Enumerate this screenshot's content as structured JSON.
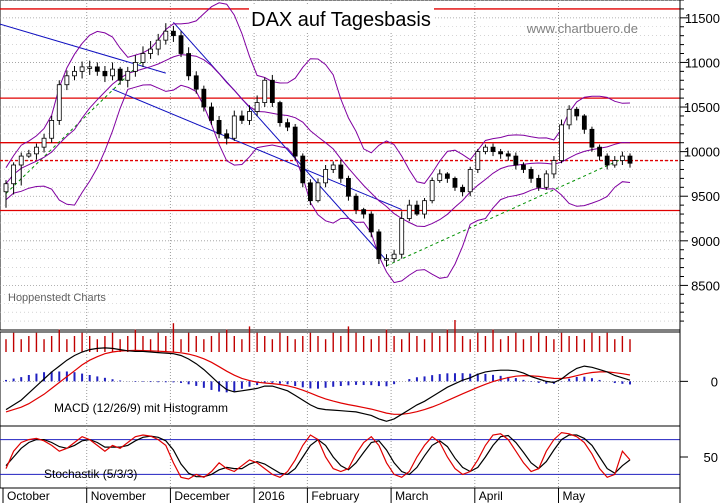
{
  "chart_data": {
    "type": "candlestick",
    "title": "DAX auf Tagesbasis",
    "source": "www.chartbuero.de",
    "credit": "Hoppenstedt Charts",
    "x_labels": [
      "October",
      "November",
      "December",
      "2016",
      "February",
      "March",
      "April",
      "May"
    ],
    "price_axis": {
      "ticks": [
        8500,
        9000,
        9500,
        10000,
        10500,
        11000,
        11500
      ],
      "ylim": [
        8000,
        11700
      ]
    },
    "horizontal_levels": [
      9340,
      9900,
      10100,
      10600,
      11600
    ],
    "price": {
      "open": [
        9550,
        9640,
        9850,
        9950,
        9975,
        10050,
        10150,
        10350,
        10750,
        10850,
        10900,
        10950,
        10950,
        10900,
        10850,
        10925,
        10800,
        10900,
        11000,
        11100,
        11150,
        11250,
        11350,
        11300,
        11100,
        10850,
        10700,
        10500,
        10350,
        10200,
        10150,
        10400,
        10350,
        10450,
        10550,
        10800,
        10550,
        10325,
        10275,
        9950,
        9650,
        9450,
        9650,
        9800,
        9850,
        9700,
        9500,
        9350,
        9300,
        9100,
        8800,
        8800,
        8850,
        9250,
        9400,
        9300,
        9450,
        9675,
        9750,
        9700,
        9600,
        9550,
        9800,
        10000,
        10050,
        10000,
        9975,
        9950,
        9850,
        9800,
        9700,
        9600,
        9750,
        9900,
        10300,
        10475,
        10400,
        10250,
        10050,
        9950,
        9850,
        9900,
        9950
      ],
      "high": [
        9680,
        9880,
        9990,
        10020,
        10090,
        10200,
        10400,
        10800,
        10910,
        10960,
        11010,
        11020,
        11000,
        10960,
        11000,
        10950,
        10950,
        11080,
        11180,
        11240,
        11320,
        11440,
        11410,
        11350,
        11170,
        10900,
        10740,
        10550,
        10400,
        10250,
        10460,
        10460,
        10520,
        10630,
        10830,
        10860,
        10570,
        10370,
        10310,
        9980,
        9690,
        9700,
        9850,
        9890,
        9910,
        9730,
        9530,
        9370,
        9330,
        9130,
        8850,
        8900,
        9330,
        9460,
        9450,
        9480,
        9710,
        9800,
        9770,
        9720,
        9630,
        9830,
        10030,
        10080,
        10090,
        10030,
        10010,
        9990,
        9880,
        9830,
        9740,
        9790,
        9950,
        10360,
        10520,
        10500,
        10420,
        10280,
        10080,
        9980,
        9950,
        10000,
        9980
      ],
      "low": [
        9370,
        9520,
        9620,
        9930,
        9910,
        9990,
        10100,
        10300,
        10690,
        10800,
        10820,
        10860,
        10850,
        10780,
        10800,
        10750,
        10720,
        10840,
        10950,
        11040,
        11080,
        11200,
        11230,
        11060,
        10800,
        10650,
        10450,
        10300,
        10150,
        10080,
        10120,
        10310,
        10300,
        10400,
        10500,
        10500,
        10280,
        10230,
        9900,
        9600,
        9400,
        9430,
        9600,
        9760,
        9650,
        9450,
        9300,
        9250,
        9040,
        8740,
        8710,
        8760,
        8800,
        9220,
        9280,
        9250,
        9420,
        9650,
        9650,
        9560,
        9500,
        9500,
        9760,
        9970,
        9950,
        9920,
        9900,
        9800,
        9760,
        9650,
        9560,
        9570,
        9700,
        9870,
        10250,
        10350,
        10200,
        10000,
        9900,
        9800,
        9820,
        9850,
        9820
      ],
      "close": [
        9640,
        9850,
        9950,
        9975,
        10050,
        10150,
        10350,
        10750,
        10850,
        10900,
        10950,
        10950,
        10900,
        10850,
        10925,
        10800,
        10900,
        11000,
        11100,
        11150,
        11250,
        11350,
        11300,
        11100,
        10850,
        10700,
        10500,
        10350,
        10200,
        10150,
        10400,
        10350,
        10450,
        10550,
        10800,
        10550,
        10325,
        10275,
        9950,
        9650,
        9450,
        9650,
        9800,
        9850,
        9700,
        9500,
        9350,
        9300,
        9100,
        8800,
        8800,
        8850,
        9250,
        9400,
        9300,
        9450,
        9675,
        9750,
        9700,
        9600,
        9550,
        9800,
        10000,
        10050,
        10000,
        9975,
        9950,
        9850,
        9800,
        9700,
        9600,
        9750,
        9900,
        10300,
        10475,
        10400,
        10250,
        10050,
        9950,
        9850,
        9900,
        9950,
        9870
      ]
    },
    "volume": [
      0.4,
      0.6,
      0.4,
      0.5,
      0.6,
      0.4,
      0.5,
      0.7,
      0.4,
      0.5,
      0.6,
      0.5,
      0.4,
      0.5,
      0.6,
      0.4,
      0.5,
      0.7,
      0.5,
      0.4,
      0.6,
      0.5,
      0.9,
      0.4,
      0.6,
      0.5,
      0.4,
      0.5,
      0.6,
      0.7,
      0.5,
      0.4,
      0.8,
      0.6,
      0.5,
      0.4,
      0.6,
      0.5,
      0.4,
      0.5,
      0.6,
      0.5,
      0.4,
      0.6,
      0.5,
      0.8,
      0.6,
      0.5,
      0.4,
      0.5,
      0.7,
      0.5,
      0.4,
      0.6,
      0.5,
      0.4,
      0.6,
      0.5,
      0.7,
      1.0,
      0.5,
      0.4,
      0.6,
      0.5,
      0.7,
      0.4,
      0.5,
      0.6,
      0.4,
      0.5,
      0.6,
      0.5,
      0.4,
      0.6,
      0.5,
      0.5,
      0.4,
      0.6,
      0.5,
      0.6,
      0.4,
      0.5,
      0.4
    ],
    "macd": {
      "label": "MACD (12/26/9) mit Histogramm",
      "ticks": [
        0
      ],
      "ylim": [
        -380,
        420
      ],
      "macd": [
        -240,
        -200,
        -160,
        -100,
        -40,
        20,
        80,
        130,
        180,
        220,
        250,
        270,
        280,
        285,
        280,
        270,
        260,
        255,
        255,
        250,
        245,
        240,
        235,
        220,
        190,
        150,
        100,
        40,
        -20,
        -70,
        -90,
        -80,
        -70,
        -60,
        -40,
        -40,
        -60,
        -80,
        -120,
        -160,
        -200,
        -230,
        -240,
        -245,
        -250,
        -255,
        -260,
        -275,
        -290,
        -320,
        -340,
        -320,
        -280,
        -240,
        -200,
        -170,
        -130,
        -90,
        -50,
        -20,
        10,
        30,
        60,
        80,
        90,
        95,
        95,
        90,
        70,
        40,
        20,
        0,
        -10,
        20,
        70,
        110,
        130,
        120,
        100,
        80,
        50,
        30,
        10
      ],
      "signal": [
        -260,
        -240,
        -220,
        -190,
        -150,
        -110,
        -60,
        -10,
        40,
        90,
        140,
        180,
        210,
        235,
        250,
        258,
        262,
        263,
        262,
        260,
        257,
        253,
        249,
        243,
        232,
        215,
        192,
        162,
        125,
        86,
        52,
        25,
        6,
        -7,
        -14,
        -19,
        -27,
        -38,
        -54,
        -75,
        -100,
        -126,
        -149,
        -168,
        -184,
        -198,
        -210,
        -223,
        -236,
        -253,
        -270,
        -280,
        -280,
        -272,
        -258,
        -240,
        -218,
        -193,
        -164,
        -135,
        -106,
        -79,
        -51,
        -25,
        -2,
        17,
        32,
        44,
        49,
        47,
        42,
        33,
        25,
        24,
        33,
        48,
        64,
        75,
        80,
        80,
        74,
        65,
        54
      ]
    },
    "stochastic": {
      "label": "Stochastik (5/3/3)",
      "ticks": [
        50
      ],
      "levels": [
        20,
        80
      ],
      "ylim": [
        0,
        100
      ],
      "k": [
        30,
        60,
        75,
        80,
        82,
        78,
        70,
        60,
        65,
        75,
        85,
        80,
        70,
        60,
        70,
        65,
        75,
        85,
        88,
        86,
        80,
        70,
        40,
        15,
        12,
        20,
        15,
        25,
        40,
        30,
        25,
        35,
        45,
        40,
        30,
        20,
        15,
        25,
        45,
        70,
        88,
        80,
        50,
        30,
        25,
        30,
        55,
        75,
        85,
        70,
        40,
        20,
        15,
        25,
        50,
        70,
        85,
        75,
        50,
        30,
        20,
        25,
        45,
        70,
        88,
        90,
        80,
        60,
        40,
        25,
        30,
        60,
        80,
        92,
        90,
        85,
        75,
        55,
        30,
        15,
        20,
        60,
        45
      ],
      "d": [
        35,
        50,
        65,
        75,
        80,
        80,
        75,
        68,
        65,
        70,
        78,
        80,
        75,
        67,
        67,
        67,
        70,
        78,
        84,
        86,
        84,
        78,
        62,
        38,
        22,
        16,
        16,
        20,
        28,
        32,
        30,
        30,
        38,
        42,
        38,
        30,
        22,
        20,
        30,
        50,
        70,
        80,
        70,
        50,
        35,
        28,
        40,
        58,
        75,
        78,
        62,
        40,
        25,
        20,
        32,
        52,
        70,
        78,
        68,
        48,
        32,
        25,
        32,
        50,
        70,
        85,
        87,
        75,
        58,
        40,
        30,
        42,
        62,
        80,
        88,
        88,
        82,
        70,
        50,
        30,
        22,
        35,
        45
      ]
    }
  }
}
